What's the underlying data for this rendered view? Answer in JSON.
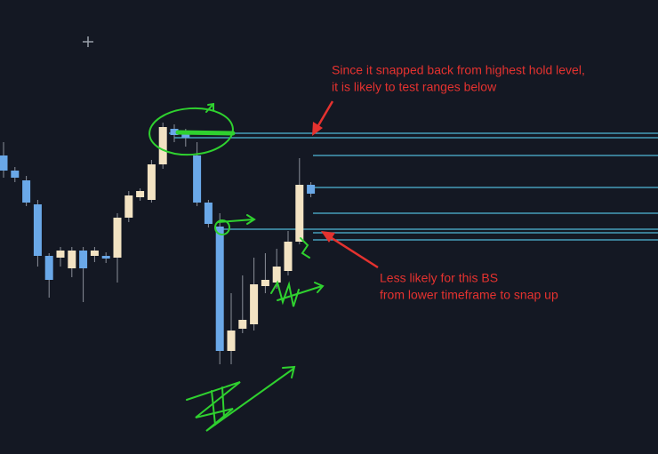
{
  "chart_data": {
    "type": "candlestick",
    "ylim": [
      0,
      511
    ],
    "up_color": "#f3e3c3",
    "down_color": "#6aa8e8",
    "level_color": "#4fb8d8",
    "open": [
      336,
      319,
      308,
      281,
      223,
      221,
      209,
      229,
      223,
      223,
      221,
      266,
      289,
      286,
      326,
      366,
      361,
      336,
      283,
      256,
      116,
      141,
      146,
      189,
      193,
      206,
      239,
      303
    ],
    "high": [
      351,
      323,
      313,
      286,
      226,
      233,
      233,
      233,
      233,
      227,
      271,
      296,
      299,
      331,
      373,
      371,
      366,
      351,
      286,
      271,
      181,
      201,
      221,
      226,
      231,
      251,
      333,
      306
    ],
    "low": [
      311,
      306,
      279,
      211,
      176,
      211,
      199,
      171,
      216,
      215,
      193,
      261,
      285,
      283,
      321,
      351,
      346,
      279,
      255,
      101,
      101,
      136,
      139,
      181,
      186,
      201,
      236,
      289
    ],
    "close": [
      319,
      311,
      283,
      223,
      196,
      229,
      229,
      209,
      229,
      220,
      266,
      291,
      296,
      326,
      368,
      359,
      356,
      283,
      259,
      116,
      139,
      151,
      191,
      196,
      211,
      239,
      303,
      293
    ],
    "levels": [
      361,
      356,
      336,
      300,
      271,
      253,
      249,
      241
    ],
    "annotations": [
      {
        "text": "Since it snapped back from highest hold level,"
      },
      {
        "text": "it is likely to test ranges below"
      },
      {
        "text": "Less likely for this BS"
      },
      {
        "text": "from lower timeframe to snap up"
      }
    ]
  }
}
